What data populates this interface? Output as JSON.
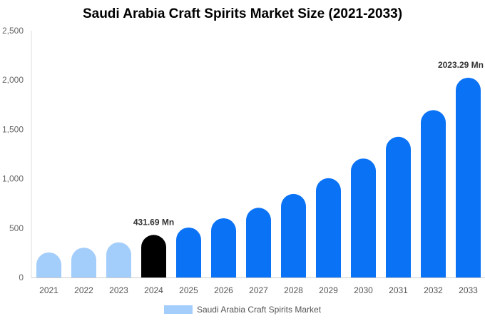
{
  "chart_data": {
    "type": "bar",
    "title": "Saudi Arabia Craft Spirits Market Size (2021-2033)",
    "categories": [
      "2021",
      "2022",
      "2023",
      "2024",
      "2025",
      "2026",
      "2027",
      "2028",
      "2029",
      "2030",
      "2031",
      "2032",
      "2033"
    ],
    "series": [
      {
        "name": "Saudi Arabia Craft Spirits Market",
        "values": [
          254,
          302,
          356,
          431.69,
          506,
          600,
          706,
          846,
          1006,
          1205,
          1425,
          1695,
          2023.29
        ]
      }
    ],
    "data_labels": [
      {
        "category": "2024",
        "text": "431.69 Mn"
      },
      {
        "category": "2033",
        "text": "2023.29 Mn"
      }
    ],
    "ylim": [
      0,
      2500
    ],
    "yticks": [
      0,
      500,
      1000,
      1500,
      2000,
      2500
    ],
    "ytick_labels": [
      "0",
      "500",
      "1,000",
      "1,500",
      "2,000",
      "2,500"
    ],
    "xlabel": "",
    "ylabel": "",
    "grid": false,
    "legend_position": "bottom",
    "colors": {
      "historical": "#a3cdfb",
      "base_year": "#000000",
      "forecast": "#0a72f5",
      "legend_swatch": "#a3cdfb"
    }
  }
}
